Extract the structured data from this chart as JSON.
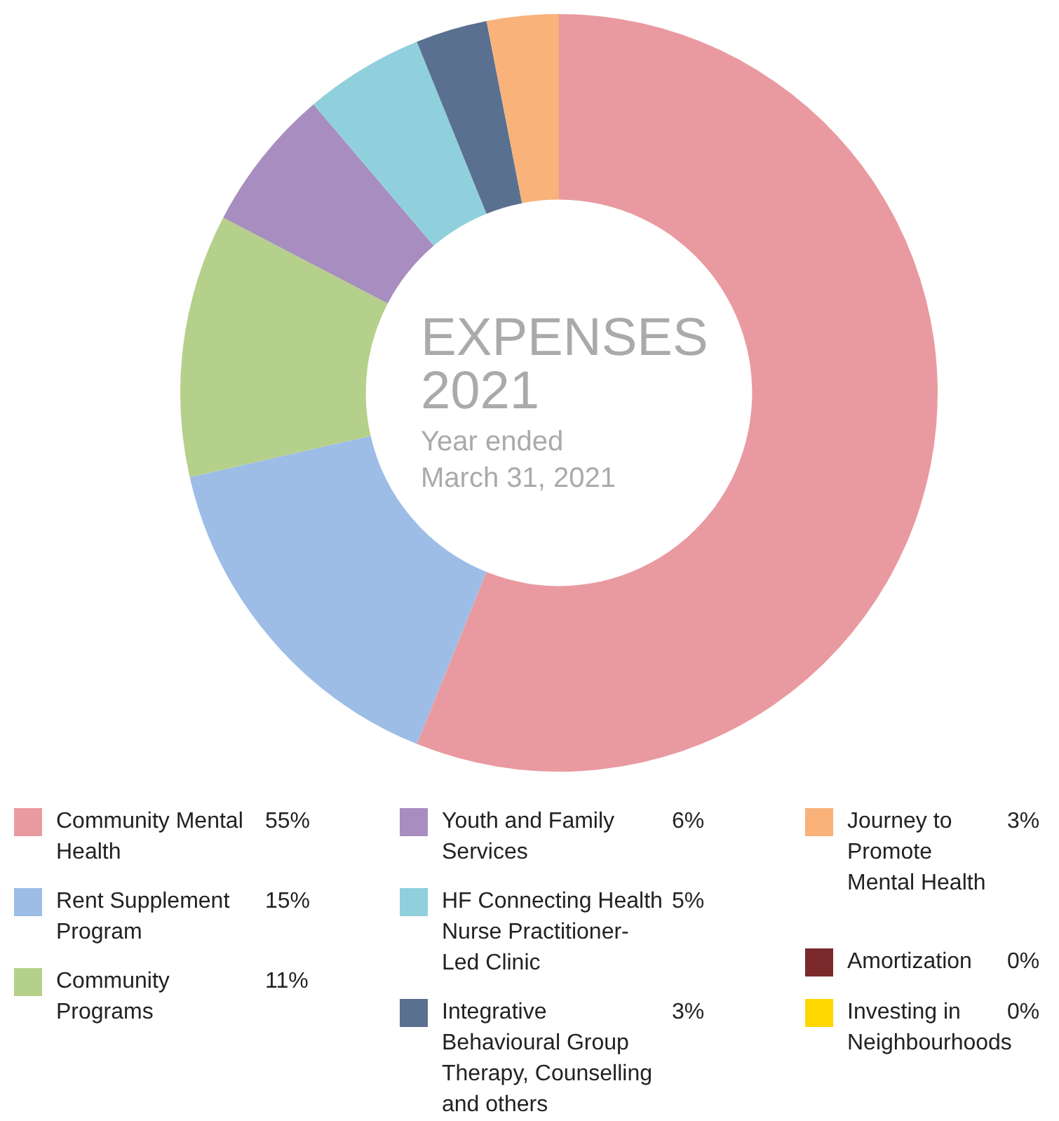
{
  "chart_data": {
    "type": "donut",
    "title": "EXPENSES 2021",
    "subtitle": "Year ended March 31, 2021",
    "categories": [
      "Community Mental Health",
      "Rent Supplement Program",
      "Community Programs",
      "Youth and Family Services",
      "HF Connecting Health Nurse Practitioner-Led Clinic",
      "Integrative Behavioural Group Therapy, Counselling and others",
      "Journey to Promote Mental Health",
      "Amortization",
      "Investing in Neighbourhoods"
    ],
    "values": [
      55,
      15,
      11,
      6,
      5,
      3,
      3,
      0,
      0
    ],
    "value_labels": [
      "55%",
      "15%",
      "11%",
      "6%",
      "5%",
      "3%",
      "3%",
      "0%",
      "0%"
    ],
    "colors": [
      "#e99aa0",
      "#9dbde6",
      "#b5d08a",
      "#a88dc0",
      "#8fd0dc",
      "#5a7090",
      "#f8b27a",
      "#7a2a2a",
      "#ffd700"
    ],
    "legend": "bottom"
  }
}
